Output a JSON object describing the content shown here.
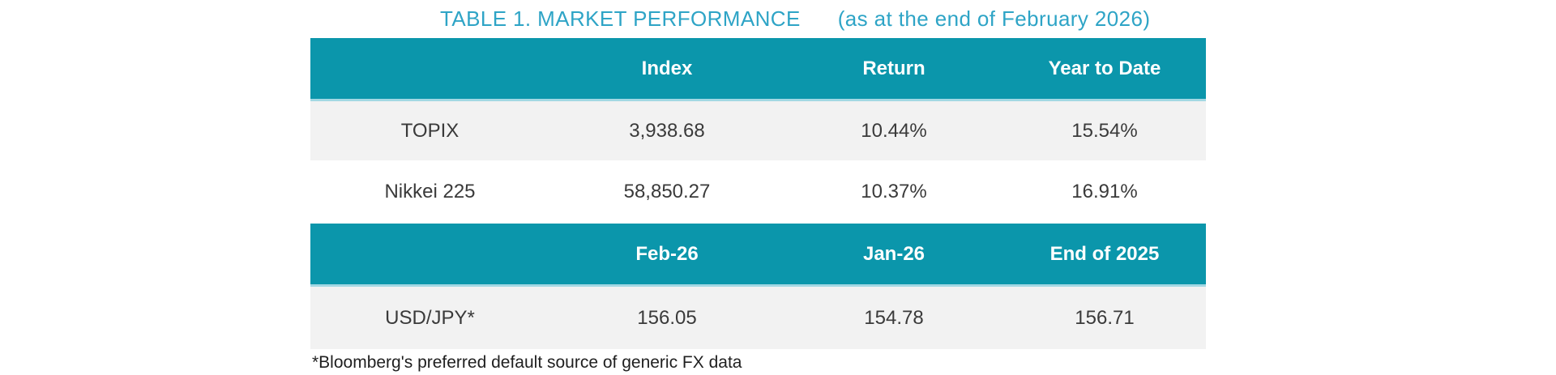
{
  "title": {
    "main": "TABLE 1. MARKET PERFORMANCE",
    "suffix": "(as at the end of February 2026)"
  },
  "colors": {
    "header_bg": "#0b96ab",
    "header_text": "#ffffff",
    "header_underline": "#a2d8e3",
    "title_text": "#2ea4c6",
    "row_alt_bg": "#f2f2f2",
    "body_text": "#3a3a3a"
  },
  "market_table": {
    "header1": [
      "",
      "Index",
      "Return",
      "Year to Date"
    ],
    "rows1": [
      [
        "TOPIX",
        "3,938.68",
        "10.44%",
        "15.54%"
      ],
      [
        "Nikkei 225",
        "58,850.27",
        "10.37%",
        "16.91%"
      ]
    ],
    "header2": [
      "",
      "Feb-26",
      "Jan-26",
      "End of 2025"
    ],
    "rows2": [
      [
        "USD/JPY*",
        "156.05",
        "154.78",
        "156.71"
      ]
    ]
  },
  "footnote": "*Bloomberg's preferred default source of generic FX data"
}
